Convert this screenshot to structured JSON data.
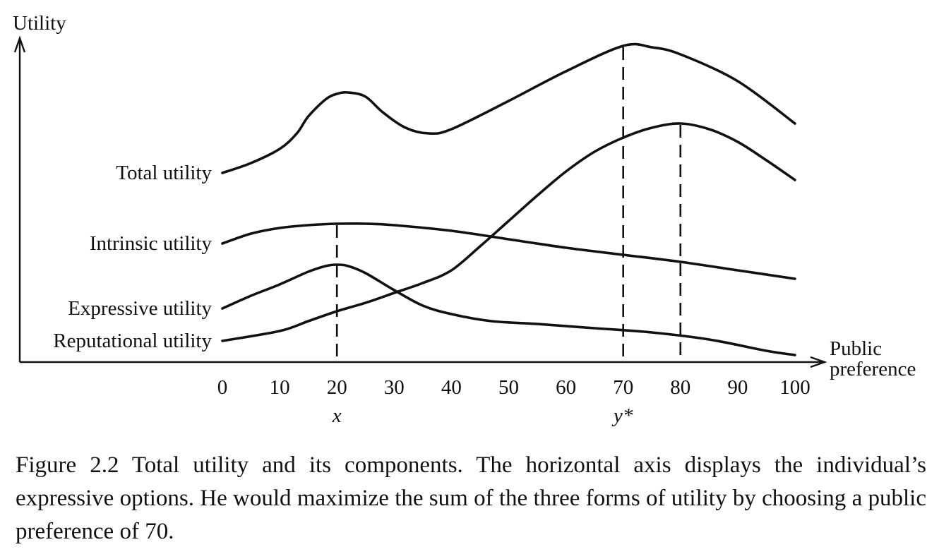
{
  "chart_data": {
    "type": "line",
    "ylabel": "Utility",
    "xlabel": "Public preference",
    "xlim": [
      0,
      100
    ],
    "ylim": [
      0,
      24
    ],
    "grid": false,
    "legend": "none",
    "yticks_shown": false,
    "x_ticks": [
      0,
      10,
      20,
      30,
      40,
      50,
      60,
      70,
      80,
      90,
      100
    ],
    "series": [
      {
        "name": "Total utility",
        "x": [
          0,
          5,
          10,
          13,
          15,
          18,
          20,
          22,
          25,
          28,
          32,
          36,
          40,
          50,
          60,
          70,
          75,
          80,
          90,
          100
        ],
        "y": [
          13.4,
          14.1,
          15.1,
          16.2,
          17.4,
          18.6,
          19.0,
          19.1,
          18.8,
          17.7,
          16.6,
          16.2,
          16.5,
          18.5,
          20.6,
          22.4,
          22.3,
          21.8,
          19.9,
          16.9
        ]
      },
      {
        "name": "Intrinsic utility",
        "x": [
          0,
          5,
          10,
          15,
          20,
          25,
          30,
          40,
          50,
          60,
          70,
          80,
          90,
          100
        ],
        "y": [
          8.4,
          9.1,
          9.5,
          9.7,
          9.8,
          9.8,
          9.7,
          9.3,
          8.7,
          8.1,
          7.6,
          7.1,
          6.5,
          5.9
        ]
      },
      {
        "name": "Expressive utility",
        "x": [
          0,
          5,
          10,
          15,
          18,
          20,
          22,
          25,
          30,
          35,
          40,
          47,
          55,
          65,
          75,
          85,
          95,
          100
        ],
        "y": [
          3.8,
          4.7,
          5.5,
          6.4,
          6.8,
          6.9,
          6.8,
          6.3,
          5.1,
          4.0,
          3.4,
          2.9,
          2.7,
          2.4,
          2.1,
          1.6,
          0.8,
          0.5
        ]
      },
      {
        "name": "Reputational utility",
        "x": [
          0,
          10,
          15,
          20,
          25,
          30,
          35,
          40,
          45,
          50,
          55,
          60,
          65,
          70,
          75,
          80,
          85,
          90,
          95,
          100
        ],
        "y": [
          1.5,
          2.2,
          2.9,
          3.6,
          4.2,
          4.9,
          5.6,
          6.5,
          8.2,
          10.0,
          11.8,
          13.5,
          14.9,
          15.9,
          16.6,
          16.9,
          16.5,
          15.6,
          14.3,
          12.9
        ]
      }
    ],
    "reference_lines": [
      {
        "x": 20,
        "label": "x"
      },
      {
        "x": 70,
        "label": "y*"
      },
      {
        "x": 80,
        "label": ""
      }
    ]
  },
  "caption": "Figure 2.2 Total utility and its components. The horizontal axis displays the individual’s expressive options. He would maximize the sum of the three forms of utility by choosing a public preference of 70."
}
